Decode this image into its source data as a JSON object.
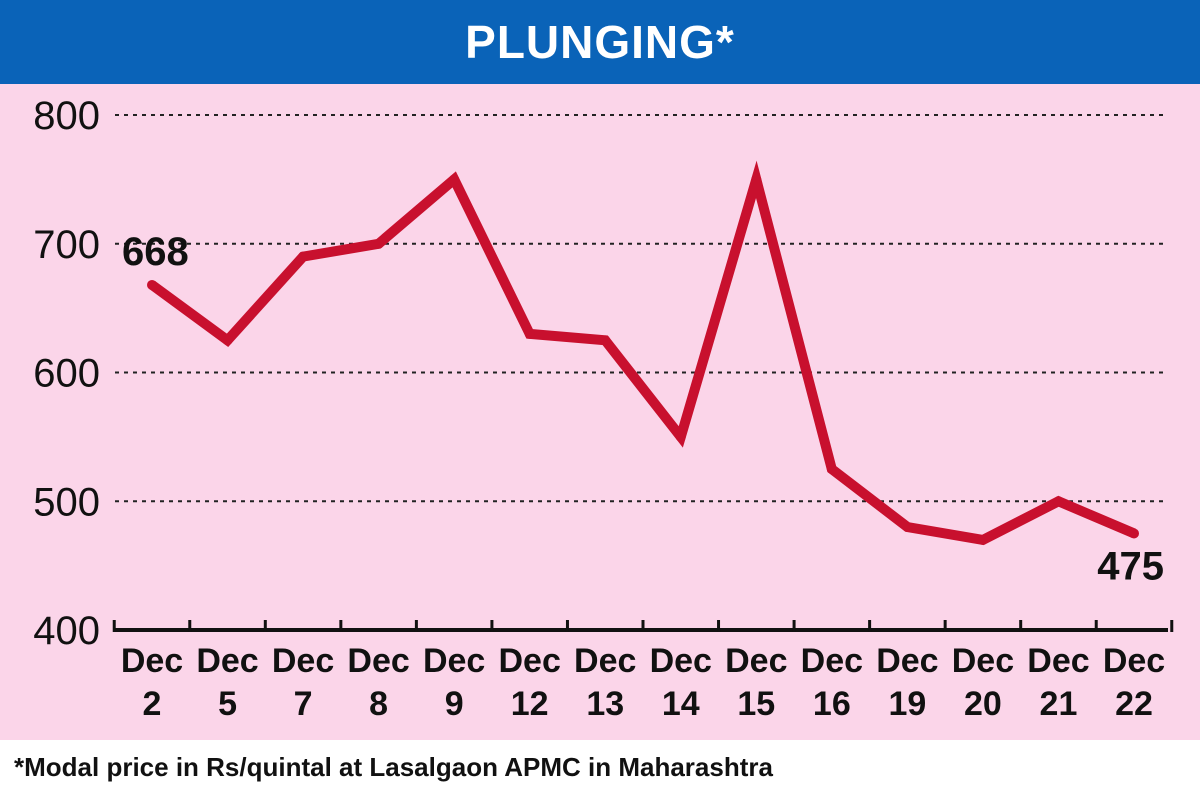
{
  "chart_data": {
    "type": "line",
    "title": "PLUNGING*",
    "footnote": "*Modal price in Rs/quintal at Lasalgaon APMC in Maharashtra",
    "categories": [
      [
        "Dec",
        "2"
      ],
      [
        "Dec",
        "5"
      ],
      [
        "Dec",
        "7"
      ],
      [
        "Dec",
        "8"
      ],
      [
        "Dec",
        "9"
      ],
      [
        "Dec",
        "12"
      ],
      [
        "Dec",
        "13"
      ],
      [
        "Dec",
        "14"
      ],
      [
        "Dec",
        "15"
      ],
      [
        "Dec",
        "16"
      ],
      [
        "Dec",
        "19"
      ],
      [
        "Dec",
        "20"
      ],
      [
        "Dec",
        "21"
      ],
      [
        "Dec",
        "22"
      ]
    ],
    "series": [
      {
        "values": [
          668,
          625,
          690,
          700,
          750,
          630,
          625,
          550,
          750,
          525,
          480,
          470,
          500,
          475
        ]
      }
    ],
    "ylim": [
      400,
      800
    ],
    "yticks": [
      "400",
      "500",
      "600",
      "700",
      "800"
    ],
    "grid": true,
    "annotations": [
      "668",
      "475"
    ],
    "colors": {
      "line": "#c8102e",
      "background": "#fbd5e9",
      "title_bar": "#0a63b8"
    }
  }
}
